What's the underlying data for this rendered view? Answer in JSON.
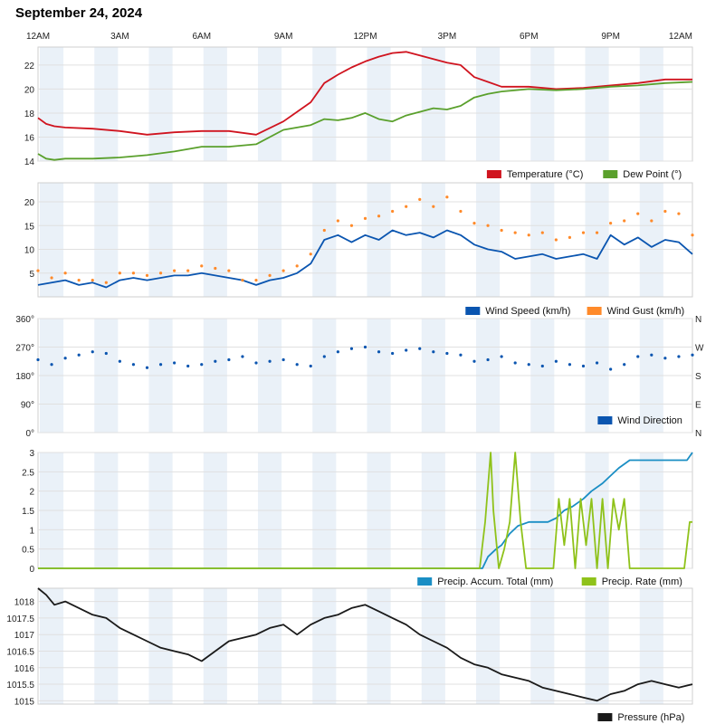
{
  "page": {
    "title": "September 24, 2024"
  },
  "time_axis": {
    "labels": [
      "12AM",
      "3AM",
      "6AM",
      "9AM",
      "12PM",
      "3PM",
      "6PM",
      "9PM",
      "12AM"
    ]
  },
  "colors": {
    "temperature": "#d0141f",
    "dew_point": "#5aa02c",
    "wind_speed": "#0a55b0",
    "wind_gust": "#ff8a2a",
    "wind_direction": "#0a55b0",
    "precip_total": "#1a8ec4",
    "precip_rate": "#8fc21a",
    "pressure": "#1a1a1a",
    "shade": "#eaf1f8",
    "grid": "#e0e0e0"
  },
  "chart_data": [
    {
      "type": "line",
      "x_unit": "hour",
      "xlim": [
        0,
        24
      ],
      "ylim": [
        14,
        23.5
      ],
      "yticks": [
        "14",
        "16",
        "18",
        "20",
        "22"
      ],
      "series": [
        {
          "name": "Temperature (°C)",
          "color": "#d0141f",
          "x": [
            0,
            0.3,
            0.6,
            1,
            2,
            3,
            4,
            5,
            6,
            7,
            8,
            9,
            10,
            10.5,
            11,
            11.5,
            12,
            12.5,
            13,
            13.5,
            14,
            14.5,
            15,
            15.5,
            16,
            16.5,
            17,
            18,
            19,
            20,
            21,
            22,
            23,
            24
          ],
          "y": [
            17.6,
            17.1,
            16.9,
            16.8,
            16.7,
            16.5,
            16.2,
            16.4,
            16.5,
            16.5,
            16.2,
            17.3,
            18.9,
            20.5,
            21.2,
            21.8,
            22.3,
            22.7,
            23.0,
            23.1,
            22.8,
            22.5,
            22.2,
            22.0,
            21.0,
            20.6,
            20.2,
            20.2,
            20.0,
            20.1,
            20.3,
            20.5,
            20.8,
            20.8
          ]
        },
        {
          "name": "Dew Point (°)",
          "color": "#5aa02c",
          "x": [
            0,
            0.3,
            0.6,
            1,
            2,
            3,
            4,
            5,
            6,
            7,
            8,
            9,
            10,
            10.5,
            11,
            11.5,
            12,
            12.5,
            13,
            13.5,
            14,
            14.5,
            15,
            15.5,
            16,
            16.5,
            17,
            18,
            19,
            20,
            21,
            22,
            23,
            24
          ],
          "y": [
            14.6,
            14.2,
            14.1,
            14.2,
            14.2,
            14.3,
            14.5,
            14.8,
            15.2,
            15.2,
            15.4,
            16.6,
            17.0,
            17.5,
            17.4,
            17.6,
            18.0,
            17.5,
            17.3,
            17.8,
            18.1,
            18.4,
            18.3,
            18.6,
            19.3,
            19.6,
            19.8,
            20.0,
            19.9,
            20.0,
            20.2,
            20.3,
            20.5,
            20.6
          ]
        }
      ]
    },
    {
      "type": "line",
      "x_unit": "hour",
      "xlim": [
        0,
        24
      ],
      "ylim": [
        0,
        24
      ],
      "yticks": [
        "5",
        "10",
        "15",
        "20"
      ],
      "series": [
        {
          "name": "Wind Speed (km/h)",
          "color": "#0a55b0",
          "x": [
            0,
            0.5,
            1,
            1.5,
            2,
            2.5,
            3,
            3.5,
            4,
            4.5,
            5,
            5.5,
            6,
            6.5,
            7,
            7.5,
            8,
            8.5,
            9,
            9.5,
            10,
            10.5,
            11,
            11.5,
            12,
            12.5,
            13,
            13.5,
            14,
            14.5,
            15,
            15.5,
            16,
            16.5,
            17,
            17.5,
            18,
            18.5,
            19,
            19.5,
            20,
            20.5,
            21,
            21.5,
            22,
            22.5,
            23,
            23.5,
            24
          ],
          "y": [
            2.5,
            3.0,
            3.5,
            2.5,
            3.0,
            2.0,
            3.5,
            4.0,
            3.5,
            4.0,
            4.5,
            4.5,
            5.0,
            4.5,
            4.0,
            3.5,
            2.5,
            3.5,
            4.0,
            5.0,
            7.0,
            12.0,
            13.0,
            11.5,
            13.0,
            12.0,
            14.0,
            13.0,
            13.5,
            12.5,
            14.0,
            13.0,
            11.0,
            10.0,
            9.5,
            8.0,
            8.5,
            9.0,
            8.0,
            8.5,
            9.0,
            8.0,
            13.0,
            11.0,
            12.5,
            10.5,
            12.0,
            11.5,
            9.0
          ]
        },
        {
          "name": "Wind Gust (km/h)",
          "color": "#ff8a2a",
          "style": "dots",
          "x": [
            0,
            0.5,
            1,
            1.5,
            2,
            2.5,
            3,
            3.5,
            4,
            4.5,
            5,
            5.5,
            6,
            6.5,
            7,
            7.5,
            8,
            8.5,
            9,
            9.5,
            10,
            10.5,
            11,
            11.5,
            12,
            12.5,
            13,
            13.5,
            14,
            14.5,
            15,
            15.5,
            16,
            16.5,
            17,
            17.5,
            18,
            18.5,
            19,
            19.5,
            20,
            20.5,
            21,
            21.5,
            22,
            22.5,
            23,
            23.5,
            24
          ],
          "y": [
            5.5,
            4.0,
            5.0,
            3.5,
            3.5,
            3.0,
            5.0,
            5.0,
            4.5,
            5.0,
            5.5,
            5.5,
            6.5,
            6.0,
            5.5,
            3.5,
            3.5,
            4.5,
            5.5,
            6.5,
            9.0,
            14.0,
            16.0,
            15.0,
            16.5,
            17.0,
            18.0,
            19.0,
            20.5,
            19.0,
            21.0,
            18.0,
            15.5,
            15.0,
            14.0,
            13.5,
            13.0,
            13.5,
            12.0,
            12.5,
            13.5,
            13.5,
            15.5,
            16.0,
            17.5,
            16.0,
            18.0,
            17.5,
            13.0
          ]
        }
      ]
    },
    {
      "type": "scatter",
      "x_unit": "hour",
      "xlim": [
        0,
        24
      ],
      "ylim": [
        0,
        360
      ],
      "yticks": [
        "0°",
        "90°",
        "180°",
        "270°",
        "360°"
      ],
      "right_ticks": [
        "N",
        "E",
        "S",
        "W",
        "N"
      ],
      "series": [
        {
          "name": "Wind Direction",
          "color": "#0a55b0",
          "x": [
            0,
            0.5,
            1,
            1.5,
            2,
            2.5,
            3,
            3.5,
            4,
            4.5,
            5,
            5.5,
            6,
            6.5,
            7,
            7.5,
            8,
            8.5,
            9,
            9.5,
            10,
            10.5,
            11,
            11.5,
            12,
            12.5,
            13,
            13.5,
            14,
            14.5,
            15,
            15.5,
            16,
            16.5,
            17,
            17.5,
            18,
            18.5,
            19,
            19.5,
            20,
            20.5,
            21,
            21.5,
            22,
            22.5,
            23,
            23.5,
            24
          ],
          "y": [
            230,
            215,
            235,
            245,
            255,
            250,
            225,
            215,
            205,
            215,
            220,
            210,
            215,
            225,
            230,
            240,
            220,
            225,
            230,
            215,
            210,
            240,
            255,
            265,
            270,
            255,
            250,
            260,
            265,
            255,
            250,
            245,
            225,
            230,
            240,
            220,
            215,
            210,
            225,
            215,
            210,
            220,
            200,
            215,
            240,
            245,
            235,
            240,
            245
          ]
        }
      ]
    },
    {
      "type": "line",
      "x_unit": "hour",
      "xlim": [
        0,
        24
      ],
      "ylim": [
        0,
        3
      ],
      "yticks": [
        "0",
        "0.5",
        "1",
        "1.5",
        "2",
        "2.5",
        "3"
      ],
      "series": [
        {
          "name": "Precip. Accum. Total (mm)",
          "color": "#1a8ec4",
          "x": [
            0,
            16.3,
            16.5,
            16.8,
            17.0,
            17.3,
            17.6,
            18.0,
            18.3,
            18.7,
            19.0,
            19.3,
            19.6,
            20.0,
            20.3,
            20.7,
            21.0,
            21.3,
            21.7,
            22.0,
            22.5,
            23.0,
            23.5,
            23.8,
            24
          ],
          "y": [
            0,
            0,
            0.3,
            0.5,
            0.6,
            0.9,
            1.1,
            1.2,
            1.2,
            1.2,
            1.3,
            1.5,
            1.6,
            1.8,
            2.0,
            2.2,
            2.4,
            2.6,
            2.8,
            2.8,
            2.8,
            2.8,
            2.8,
            2.8,
            3.0
          ]
        },
        {
          "name": "Precip. Rate (mm)",
          "color": "#8fc21a",
          "x": [
            0,
            16.2,
            16.4,
            16.6,
            16.7,
            16.9,
            17.1,
            17.3,
            17.5,
            17.7,
            17.9,
            18.1,
            18.3,
            18.5,
            18.7,
            18.9,
            19.1,
            19.3,
            19.5,
            19.7,
            19.9,
            20.1,
            20.3,
            20.5,
            20.7,
            20.9,
            21.1,
            21.3,
            21.5,
            21.7,
            21.9,
            22.1,
            22.3,
            22.5,
            22.7,
            23.0,
            23.5,
            23.7,
            23.9,
            24
          ],
          "y": [
            0,
            0,
            1.2,
            3.0,
            1.5,
            0,
            0.5,
            1.2,
            3.0,
            1.2,
            0,
            0,
            0,
            0,
            0,
            0,
            1.8,
            0.6,
            1.8,
            0,
            1.8,
            0.6,
            1.8,
            0,
            1.8,
            0,
            1.8,
            1.0,
            1.8,
            0,
            0,
            0,
            0,
            0,
            0,
            0,
            0,
            0,
            1.2,
            1.2
          ]
        }
      ]
    },
    {
      "type": "line",
      "x_unit": "hour",
      "xlim": [
        0,
        24
      ],
      "ylim": [
        1014.9,
        1018.4
      ],
      "yticks": [
        "1015",
        "1015.5",
        "1016",
        "1016.5",
        "1017",
        "1017.5",
        "1018"
      ],
      "series": [
        {
          "name": "Pressure (hPa)",
          "color": "#1a1a1a",
          "x": [
            0,
            0.3,
            0.6,
            1,
            1.5,
            2,
            2.5,
            3,
            3.5,
            4,
            4.5,
            5,
            5.5,
            6,
            6.5,
            7,
            7.5,
            8,
            8.5,
            9,
            9.5,
            10,
            10.5,
            11,
            11.5,
            12,
            12.5,
            13,
            13.5,
            14,
            14.5,
            15,
            15.5,
            16,
            16.5,
            17,
            17.5,
            18,
            18.5,
            19,
            19.5,
            20,
            20.5,
            21,
            21.5,
            22,
            22.5,
            23,
            23.5,
            24
          ],
          "y": [
            1018.4,
            1018.2,
            1017.9,
            1018.0,
            1017.8,
            1017.6,
            1017.5,
            1017.2,
            1017.0,
            1016.8,
            1016.6,
            1016.5,
            1016.4,
            1016.2,
            1016.5,
            1016.8,
            1016.9,
            1017.0,
            1017.2,
            1017.3,
            1017.0,
            1017.3,
            1017.5,
            1017.6,
            1017.8,
            1017.9,
            1017.7,
            1017.5,
            1017.3,
            1017.0,
            1016.8,
            1016.6,
            1016.3,
            1016.1,
            1016.0,
            1015.8,
            1015.7,
            1015.6,
            1015.4,
            1015.3,
            1015.2,
            1015.1,
            1015.0,
            1015.2,
            1015.3,
            1015.5,
            1015.6,
            1015.5,
            1015.4,
            1015.5
          ]
        }
      ]
    }
  ]
}
